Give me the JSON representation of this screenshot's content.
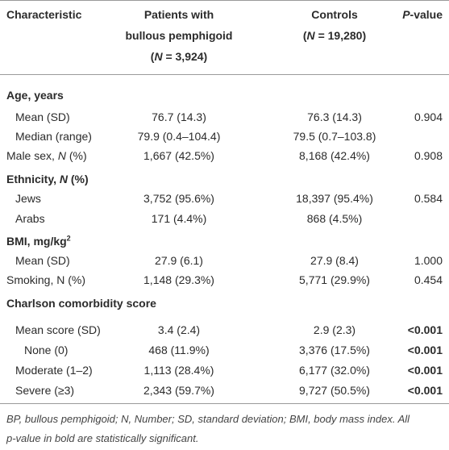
{
  "header": [
    [
      [
        "Characteristic"
      ]
    ],
    [
      [
        "Patients with"
      ],
      [
        "bullous pemphigoid"
      ],
      [
        "(",
        {
          "italic": "N"
        },
        " = 3,924)"
      ]
    ],
    [
      [
        "Controls"
      ],
      [
        "(",
        {
          "italic": "N"
        },
        " = 19,280)"
      ]
    ],
    [
      [
        {
          "italic": "P"
        },
        "-value"
      ]
    ]
  ],
  "rows": [
    {
      "cells": [
        [
          "Age, years"
        ],
        "",
        "",
        ""
      ],
      "section": true
    },
    {
      "cells": [
        [
          "Mean (SD)"
        ],
        "76.7 (14.3)",
        "76.3 (14.3)",
        "0.904"
      ],
      "indent": 1
    },
    {
      "cells": [
        [
          "Median (range)"
        ],
        "79.9 (0.4–104.4)",
        "79.5 (0.7–103.8)",
        ""
      ],
      "indent": 1
    },
    {
      "cells": [
        [
          "Male sex, ",
          {
            "italic": "N"
          },
          " (%)"
        ],
        "1,667 (42.5%)",
        "8,168 (42.4%)",
        "0.908"
      ]
    },
    {
      "cells": [
        [
          "Ethnicity, ",
          {
            "italic": "N"
          },
          " (%)"
        ],
        "",
        "",
        ""
      ],
      "section": true
    },
    {
      "cells": [
        [
          "Jews"
        ],
        "3,752 (95.6%)",
        "18,397 (95.4%)",
        "0.584"
      ],
      "indent": 1
    },
    {
      "cells": [
        [
          "Arabs"
        ],
        "171 (4.4%)",
        "868 (4.5%)",
        ""
      ],
      "indent": 1
    },
    {
      "cells": [
        [
          "BMI, mg/kg",
          {
            "sup": "2"
          }
        ],
        "",
        "",
        ""
      ],
      "section": true
    },
    {
      "cells": [
        [
          "Mean (SD)"
        ],
        "27.9 (6.1)",
        "27.9 (8.4)",
        "1.000"
      ],
      "indent": 1
    },
    {
      "cells": [
        [
          "Smoking, N (%)"
        ],
        "1,148 (29.3%)",
        "5,771 (29.9%)",
        "0.454"
      ]
    },
    {
      "cells": [
        [
          "Charlson comorbidity score"
        ],
        "",
        "",
        ""
      ],
      "section": true
    },
    {
      "cells": [
        [
          "Mean score (SD)"
        ],
        "3.4 (2.4)",
        "2.9 (2.3)",
        "<0.001"
      ],
      "indent": 1,
      "bold_p": true
    },
    {
      "cells": [
        [
          "None (0)"
        ],
        "468 (11.9%)",
        "3,376 (17.5%)",
        "<0.001"
      ],
      "indent": 2,
      "bold_p": true
    },
    {
      "cells": [
        [
          "Moderate (1–2)"
        ],
        "1,113 (28.4%)",
        "6,177 (32.0%)",
        "<0.001"
      ],
      "indent": 1,
      "bold_p": true
    },
    {
      "cells": [
        [
          "Severe (≥3)"
        ],
        "2,343 (59.7%)",
        "9,727 (50.5%)",
        "<0.001"
      ],
      "indent": 1,
      "bold_p": true
    }
  ],
  "footnote": [
    "BP, bullous pemphigoid; N, Number; SD, standard deviation; BMI, body mass index. All",
    "p-value in bold are statistically significant."
  ]
}
